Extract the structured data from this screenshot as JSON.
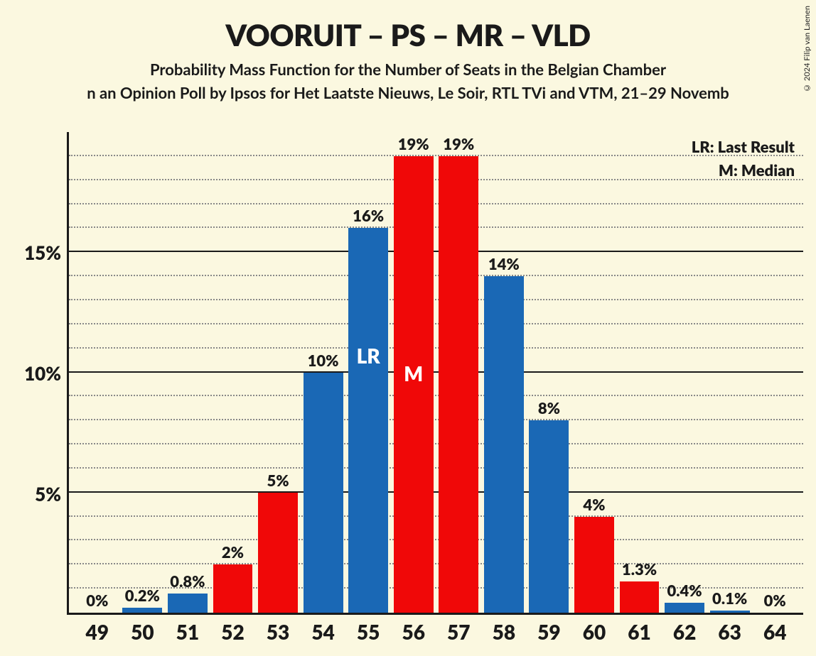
{
  "copyright": "© 2024 Filip van Laenen",
  "title": "VOORUIT – PS – MR – VLD",
  "subtitle1": "Probability Mass Function for the Number of Seats in the Belgian Chamber",
  "subtitle2": "n an Opinion Poll by Ipsos for Het Laatste Nieuws, Le Soir, RTL TVi and VTM, 21–29 Novemb",
  "legend": {
    "lr": "LR: Last Result",
    "m": "M: Median"
  },
  "chart": {
    "type": "bar",
    "background_color": "#fbf8e0",
    "axis_color": "#1a1a1a",
    "grid_minor_color": "#888888",
    "blue": "#1a68b5",
    "red": "#f00808",
    "y_max": 20,
    "y_major_step": 5,
    "y_minor_step": 1,
    "y_major_labels": [
      "5%",
      "10%",
      "15%"
    ],
    "y_major_values": [
      5,
      10,
      15
    ],
    "bar_width_pct": 88,
    "title_fontsize": 42,
    "subtitle_fontsize": 22,
    "axis_label_fontsize": 26,
    "bar_label_fontsize": 22,
    "x_label_fontsize": 28,
    "categories": [
      "49",
      "50",
      "51",
      "52",
      "53",
      "54",
      "55",
      "56",
      "57",
      "58",
      "59",
      "60",
      "61",
      "62",
      "63",
      "64"
    ],
    "values": [
      0,
      0.2,
      0.8,
      2,
      5,
      10,
      16,
      19,
      19,
      14,
      8,
      4,
      1.3,
      0.4,
      0.1,
      0
    ],
    "labels": [
      "0%",
      "0.2%",
      "0.8%",
      "2%",
      "5%",
      "10%",
      "16%",
      "19%",
      "19%",
      "14%",
      "8%",
      "4%",
      "1.3%",
      "0.4%",
      "0.1%",
      "0%"
    ],
    "colors": [
      "blue",
      "blue",
      "blue",
      "red",
      "red",
      "blue",
      "blue",
      "red",
      "red",
      "blue",
      "blue",
      "red",
      "red",
      "blue",
      "blue",
      "blue"
    ],
    "markers": {
      "55": {
        "text": "LR",
        "position_pct_from_top": 30
      },
      "56": {
        "text": "M",
        "position_pct_from_top": 45
      }
    }
  }
}
